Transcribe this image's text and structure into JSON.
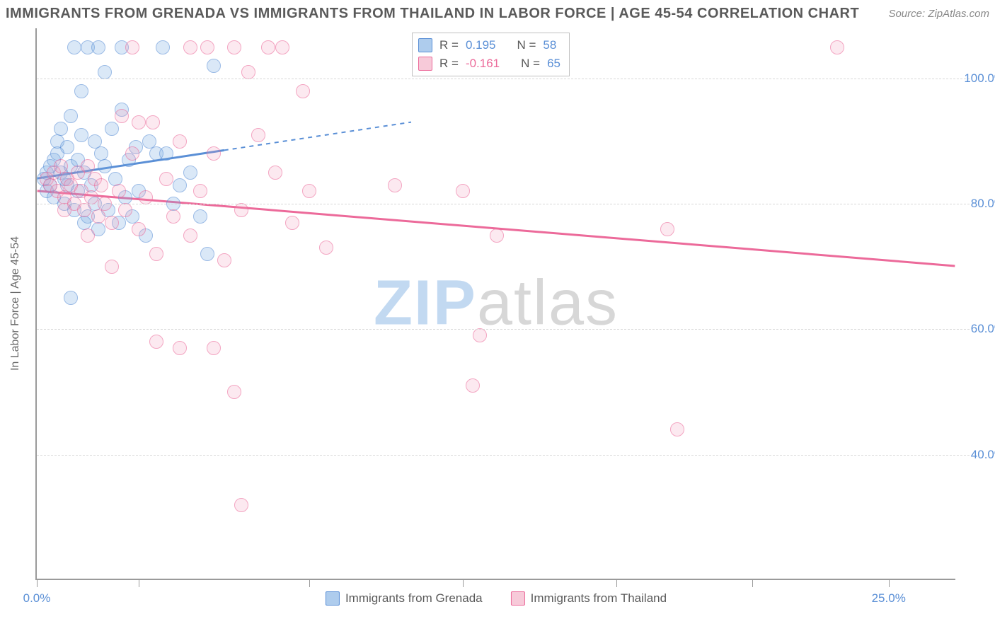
{
  "title": "IMMIGRANTS FROM GRENADA VS IMMIGRANTS FROM THAILAND IN LABOR FORCE | AGE 45-54 CORRELATION CHART",
  "source": "Source: ZipAtlas.com",
  "y_axis_label": "In Labor Force | Age 45-54",
  "watermark": {
    "zip": "ZIP",
    "atlas": "atlas"
  },
  "chart": {
    "type": "scatter",
    "xlim": [
      0,
      27
    ],
    "ylim": [
      20,
      108
    ],
    "x_ticks_labeled": [
      {
        "v": 0,
        "label": "0.0%"
      },
      {
        "v": 25,
        "label": "25.0%"
      }
    ],
    "x_ticks_minor": [
      3,
      8,
      12.5,
      17,
      21
    ],
    "y_gridlines": [
      40,
      60,
      80,
      100
    ],
    "y_tick_labels": [
      {
        "v": 40,
        "label": "40.0%"
      },
      {
        "v": 60,
        "label": "60.0%"
      },
      {
        "v": 80,
        "label": "80.0%"
      },
      {
        "v": 100,
        "label": "100.0%"
      }
    ],
    "colors": {
      "grenada_fill": "rgba(120,170,225,0.45)",
      "grenada_stroke": "#5a8fd6",
      "thailand_fill": "rgba(240,150,180,0.35)",
      "thailand_stroke": "#ec6a9a",
      "grid": "#d8d8d8",
      "axis": "#9a9a9a",
      "tick_text": "#5a8fd6",
      "text": "#5a5a5a"
    },
    "series": [
      {
        "key": "grenada",
        "label": "Immigrants from Grenada",
        "class": "blue",
        "R": "0.195",
        "N": "58",
        "trend": {
          "x1": 0,
          "y1": 84,
          "x2": 5.5,
          "y2": 88.5,
          "dash_to_x": 11,
          "dash_to_y": 93
        },
        "points": [
          [
            0.2,
            84
          ],
          [
            0.3,
            85
          ],
          [
            0.3,
            82
          ],
          [
            0.4,
            86
          ],
          [
            0.4,
            83
          ],
          [
            0.5,
            87
          ],
          [
            0.5,
            81
          ],
          [
            0.6,
            88
          ],
          [
            0.6,
            90
          ],
          [
            0.7,
            85
          ],
          [
            0.7,
            92
          ],
          [
            0.8,
            84
          ],
          [
            0.8,
            80
          ],
          [
            0.9,
            89
          ],
          [
            0.9,
            83
          ],
          [
            1.0,
            94
          ],
          [
            1.0,
            86
          ],
          [
            1.1,
            105
          ],
          [
            1.1,
            79
          ],
          [
            1.2,
            82
          ],
          [
            1.2,
            87
          ],
          [
            1.3,
            91
          ],
          [
            1.3,
            98
          ],
          [
            1.4,
            85
          ],
          [
            1.5,
            105
          ],
          [
            1.5,
            78
          ],
          [
            1.6,
            83
          ],
          [
            1.7,
            90
          ],
          [
            1.7,
            80
          ],
          [
            1.8,
            105
          ],
          [
            1.8,
            76
          ],
          [
            1.9,
            88
          ],
          [
            2.0,
            86
          ],
          [
            2.0,
            101
          ],
          [
            2.1,
            79
          ],
          [
            2.2,
            92
          ],
          [
            2.3,
            84
          ],
          [
            2.4,
            77
          ],
          [
            2.5,
            95
          ],
          [
            2.6,
            81
          ],
          [
            2.7,
            87
          ],
          [
            2.8,
            78
          ],
          [
            2.9,
            89
          ],
          [
            3.0,
            82
          ],
          [
            3.2,
            75
          ],
          [
            3.3,
            90
          ],
          [
            3.5,
            88
          ],
          [
            3.7,
            105
          ],
          [
            4.0,
            80
          ],
          [
            4.2,
            83
          ],
          [
            4.5,
            85
          ],
          [
            4.8,
            78
          ],
          [
            5.0,
            72
          ],
          [
            1.0,
            65
          ],
          [
            1.4,
            77
          ],
          [
            5.2,
            102
          ],
          [
            2.5,
            105
          ],
          [
            3.8,
            88
          ]
        ]
      },
      {
        "key": "thailand",
        "label": "Immigrants from Thailand",
        "class": "pink",
        "R": "-0.161",
        "N": "65",
        "trend": {
          "x1": 0,
          "y1": 82,
          "x2": 27,
          "y2": 70
        },
        "points": [
          [
            0.3,
            84
          ],
          [
            0.4,
            83
          ],
          [
            0.5,
            85
          ],
          [
            0.6,
            82
          ],
          [
            0.7,
            86
          ],
          [
            0.8,
            81
          ],
          [
            0.9,
            84
          ],
          [
            1.0,
            83
          ],
          [
            1.1,
            80
          ],
          [
            1.2,
            85
          ],
          [
            1.3,
            82
          ],
          [
            1.4,
            79
          ],
          [
            1.5,
            86
          ],
          [
            1.6,
            81
          ],
          [
            1.7,
            84
          ],
          [
            1.8,
            78
          ],
          [
            1.9,
            83
          ],
          [
            2.0,
            80
          ],
          [
            2.2,
            77
          ],
          [
            2.4,
            82
          ],
          [
            2.5,
            94
          ],
          [
            2.6,
            79
          ],
          [
            2.8,
            88
          ],
          [
            3.0,
            76
          ],
          [
            3.2,
            81
          ],
          [
            3.4,
            93
          ],
          [
            3.5,
            72
          ],
          [
            3.8,
            84
          ],
          [
            4.0,
            78
          ],
          [
            4.2,
            90
          ],
          [
            4.5,
            75
          ],
          [
            4.8,
            82
          ],
          [
            5.0,
            105
          ],
          [
            5.2,
            88
          ],
          [
            5.5,
            71
          ],
          [
            5.8,
            105
          ],
          [
            6.0,
            79
          ],
          [
            6.2,
            101
          ],
          [
            6.5,
            91
          ],
          [
            6.8,
            105
          ],
          [
            7.0,
            85
          ],
          [
            7.2,
            105
          ],
          [
            7.5,
            77
          ],
          [
            7.8,
            98
          ],
          [
            8.0,
            82
          ],
          [
            8.5,
            73
          ],
          [
            3.5,
            58
          ],
          [
            4.2,
            57
          ],
          [
            5.8,
            50
          ],
          [
            6.0,
            32
          ],
          [
            10.5,
            83
          ],
          [
            12.5,
            82
          ],
          [
            12.8,
            51
          ],
          [
            13.0,
            59
          ],
          [
            13.5,
            75
          ],
          [
            18.5,
            76
          ],
          [
            18.8,
            44
          ],
          [
            23.5,
            105
          ],
          [
            5.2,
            57
          ],
          [
            4.5,
            105
          ],
          [
            2.8,
            105
          ],
          [
            1.5,
            75
          ],
          [
            2.2,
            70
          ],
          [
            3.0,
            93
          ],
          [
            0.8,
            79
          ]
        ]
      }
    ]
  },
  "legend_corr_labels": {
    "R": "R =",
    "N": "N ="
  },
  "bottom_legend": [
    {
      "class": "blue",
      "bind": "chart.series.0.label"
    },
    {
      "class": "pink",
      "bind": "chart.series.1.label"
    }
  ]
}
